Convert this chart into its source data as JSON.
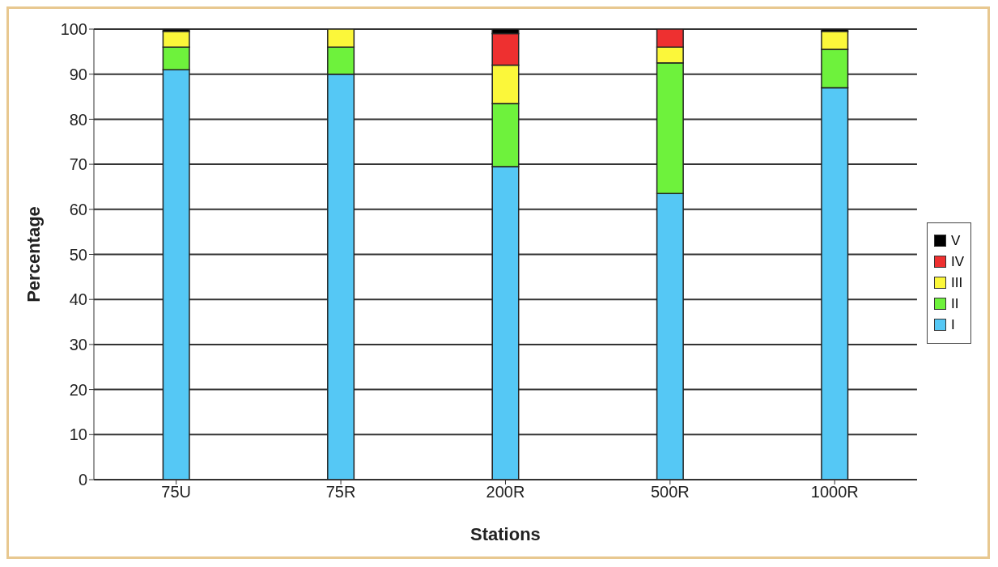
{
  "chart_data": {
    "type": "bar",
    "stacked": true,
    "xlabel": "Stations",
    "ylabel": "Percentage",
    "categories": [
      "75U",
      "75R",
      "200R",
      "500R",
      "1000R"
    ],
    "series": [
      {
        "name": "I",
        "color": "#55c8f5",
        "values": [
          91,
          90,
          69.5,
          63.5,
          87
        ]
      },
      {
        "name": "II",
        "color": "#6ef23c",
        "values": [
          5,
          6,
          14,
          29,
          8.5
        ]
      },
      {
        "name": "III",
        "color": "#fbf73a",
        "values": [
          3.5,
          4,
          8.5,
          3.5,
          4
        ]
      },
      {
        "name": "IV",
        "color": "#ee3030",
        "values": [
          0,
          0,
          7,
          4,
          0
        ]
      },
      {
        "name": "V",
        "color": "#000000",
        "values": [
          0.5,
          0,
          1,
          0,
          0.5
        ]
      }
    ],
    "ylim": [
      0,
      100
    ],
    "yticks": [
      0,
      10,
      20,
      30,
      40,
      50,
      60,
      70,
      80,
      90,
      100
    ],
    "grid": "y",
    "legend": "right"
  }
}
